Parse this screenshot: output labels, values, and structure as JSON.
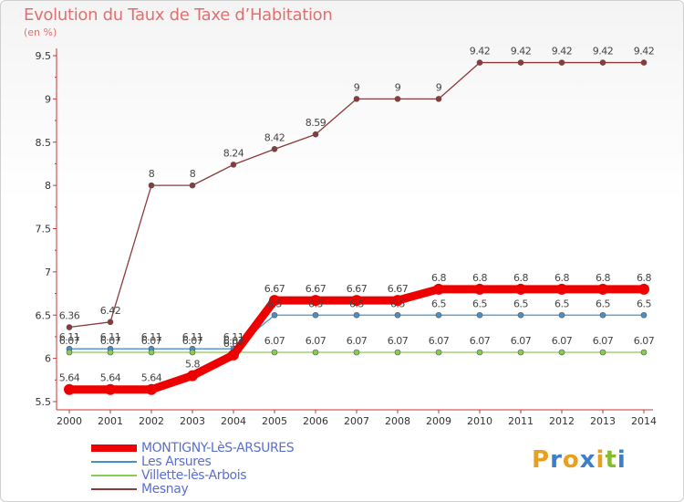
{
  "chart_data": {
    "type": "line",
    "title": "Evolution du Taux de Taxe d’Habitation",
    "ylabel": "(en %)",
    "x": [
      "2000",
      "2001",
      "2002",
      "2003",
      "2004",
      "2005",
      "2006",
      "2007",
      "2008",
      "2009",
      "2010",
      "2011",
      "2012",
      "2013",
      "2014"
    ],
    "ylim": [
      5.5,
      9.5
    ],
    "yticks": [
      "5.5",
      "6",
      "6.5",
      "7",
      "7.5",
      "8",
      "8.5",
      "9",
      "9.5"
    ],
    "grid": false,
    "legend_position": "bottom-left",
    "series": [
      {
        "name": "MONTIGNY-LèS-ARSURES",
        "color": "#ee0000",
        "labels": [
          "5.64",
          "5.64",
          "5.64",
          "5.8",
          "6.04",
          "6.67",
          "6.67",
          "6.67",
          "6.67",
          "6.8",
          "6.8",
          "6.8",
          "6.8",
          "6.8",
          "6.8"
        ],
        "values": [
          5.64,
          5.64,
          5.64,
          5.8,
          6.04,
          6.67,
          6.67,
          6.67,
          6.67,
          6.8,
          6.8,
          6.8,
          6.8,
          6.8,
          6.8
        ]
      },
      {
        "name": "Les Arsures",
        "color": "#4a90c8",
        "labels": [
          "6.11",
          "6.11",
          "6.11",
          "6.11",
          "6.11",
          "6.5",
          "6.5",
          "6.5",
          "6.5",
          "6.5",
          "6.5",
          "6.5",
          "6.5",
          "6.5",
          "6.5"
        ],
        "values": [
          6.11,
          6.11,
          6.11,
          6.11,
          6.11,
          6.5,
          6.5,
          6.5,
          6.5,
          6.5,
          6.5,
          6.5,
          6.5,
          6.5,
          6.5
        ]
      },
      {
        "name": "Villette-lès-Arbois",
        "color": "#88cc55",
        "labels": [
          "6.07",
          "6.07",
          "6.07",
          "6.07",
          "6.07",
          "6.07",
          "6.07",
          "6.07",
          "6.07",
          "6.07",
          "6.07",
          "6.07",
          "6.07",
          "6.07",
          "6.07"
        ],
        "values": [
          6.07,
          6.07,
          6.07,
          6.07,
          6.07,
          6.07,
          6.07,
          6.07,
          6.07,
          6.07,
          6.07,
          6.07,
          6.07,
          6.07,
          6.07
        ]
      },
      {
        "name": "Mesnay",
        "color": "#8b3a3a",
        "labels": [
          "6.36",
          "6.42",
          "8",
          "8",
          "8.24",
          "8.42",
          "8.59",
          "9",
          "9",
          "9",
          "9.42",
          "9.42",
          "9.42",
          "9.42",
          "9.42"
        ],
        "values": [
          6.36,
          6.42,
          8,
          8,
          8.24,
          8.42,
          8.59,
          9,
          9,
          9,
          9.42,
          9.42,
          9.42,
          9.42,
          9.42
        ]
      }
    ]
  },
  "logo": {
    "text": "Proxiti",
    "colors": [
      "#e8a020",
      "#3a80c8",
      "#e8a020",
      "#3a80c8",
      "#e8a020",
      "#88bb33",
      "#3a80c8"
    ]
  }
}
